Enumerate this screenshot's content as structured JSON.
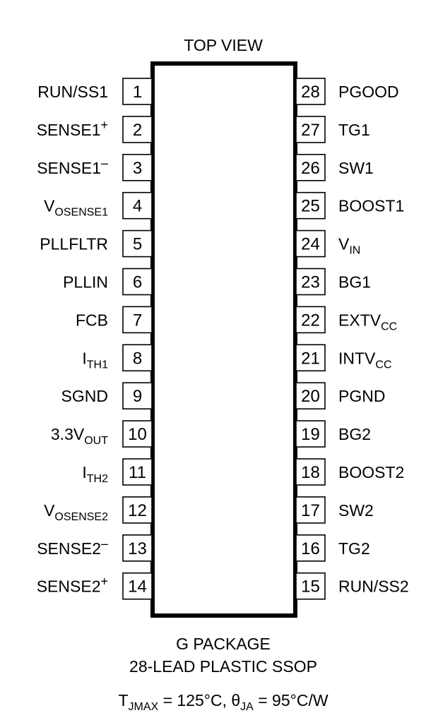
{
  "view_label": "TOP VIEW",
  "left_pins": [
    {
      "num": "1",
      "text": "RUN/SS1",
      "sub": "",
      "sup": ""
    },
    {
      "num": "2",
      "text": "SENSE1",
      "sub": "",
      "sup": "+"
    },
    {
      "num": "3",
      "text": "SENSE1",
      "sub": "",
      "sup": "–"
    },
    {
      "num": "4",
      "text": "V",
      "sub": "OSENSE1",
      "sup": ""
    },
    {
      "num": "5",
      "text": "PLLFLTR",
      "sub": "",
      "sup": ""
    },
    {
      "num": "6",
      "text": "PLLIN",
      "sub": "",
      "sup": ""
    },
    {
      "num": "7",
      "text": "FCB",
      "sub": "",
      "sup": ""
    },
    {
      "num": "8",
      "text": "I",
      "sub": "TH1",
      "sup": ""
    },
    {
      "num": "9",
      "text": "SGND",
      "sub": "",
      "sup": ""
    },
    {
      "num": "10",
      "text": "3.3V",
      "sub": "OUT",
      "sup": ""
    },
    {
      "num": "11",
      "text": "I",
      "sub": "TH2",
      "sup": ""
    },
    {
      "num": "12",
      "text": "V",
      "sub": "OSENSE2",
      "sup": ""
    },
    {
      "num": "13",
      "text": "SENSE2",
      "sub": "",
      "sup": "–"
    },
    {
      "num": "14",
      "text": "SENSE2",
      "sub": "",
      "sup": "+"
    }
  ],
  "right_pins": [
    {
      "num": "28",
      "text": "PGOOD",
      "sub": "",
      "sup": ""
    },
    {
      "num": "27",
      "text": "TG1",
      "sub": "",
      "sup": ""
    },
    {
      "num": "26",
      "text": "SW1",
      "sub": "",
      "sup": ""
    },
    {
      "num": "25",
      "text": "BOOST1",
      "sub": "",
      "sup": ""
    },
    {
      "num": "24",
      "text": "V",
      "sub": "IN",
      "sup": ""
    },
    {
      "num": "23",
      "text": "BG1",
      "sub": "",
      "sup": ""
    },
    {
      "num": "22",
      "text": "EXTV",
      "sub": "CC",
      "sup": ""
    },
    {
      "num": "21",
      "text": "INTV",
      "sub": "CC",
      "sup": ""
    },
    {
      "num": "20",
      "text": "PGND",
      "sub": "",
      "sup": ""
    },
    {
      "num": "19",
      "text": "BG2",
      "sub": "",
      "sup": ""
    },
    {
      "num": "18",
      "text": "BOOST2",
      "sub": "",
      "sup": ""
    },
    {
      "num": "17",
      "text": "SW2",
      "sub": "",
      "sup": ""
    },
    {
      "num": "16",
      "text": "TG2",
      "sub": "",
      "sup": ""
    },
    {
      "num": "15",
      "text": "RUN/SS2",
      "sub": "",
      "sup": ""
    }
  ],
  "package_line1": "G PACKAGE",
  "package_line2": "28-LEAD PLASTIC SSOP",
  "thermal": {
    "t_main": "T",
    "t_sub": "JMAX",
    "t_value": " = 125°C, ",
    "theta_main": "θ",
    "theta_sub": "JA",
    "theta_value": " = 95°C/W"
  }
}
